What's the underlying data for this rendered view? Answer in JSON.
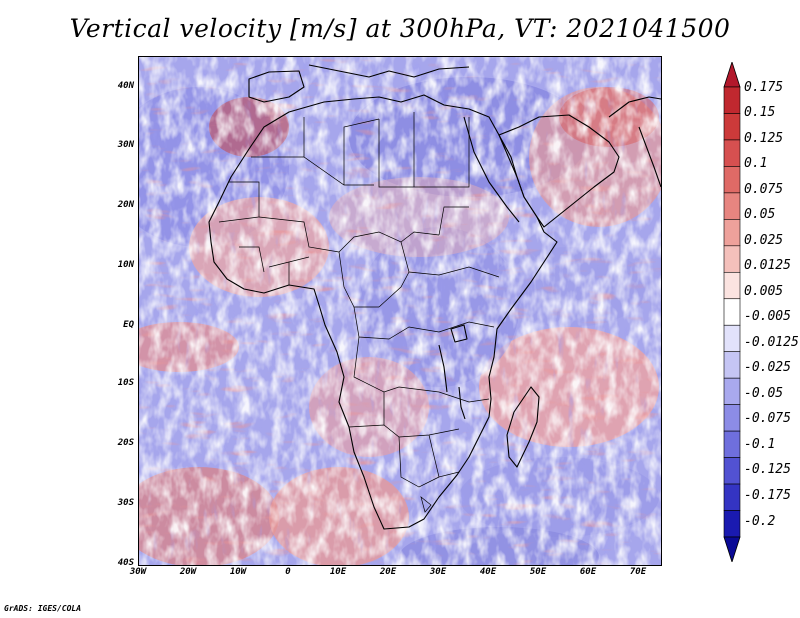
{
  "title": "Vertical velocity [m/s] at 300hPa, VT: 2021041500",
  "credit": "GrADS: IGES/COLA",
  "map": {
    "lat_labels": [
      "40N",
      "30N",
      "20N",
      "10N",
      "EQ",
      "10S",
      "20S",
      "30S",
      "40S"
    ],
    "lon_labels": [
      "30W",
      "20W",
      "10W",
      "0",
      "10E",
      "20E",
      "30E",
      "40E",
      "50E",
      "60E",
      "70E"
    ],
    "extent": {
      "lon_min": -30,
      "lon_max": 75,
      "lat_min": -40,
      "lat_max": 45
    }
  },
  "colorbar": {
    "labels": [
      "0.175",
      "0.15",
      "0.125",
      "0.1",
      "0.075",
      "0.05",
      "0.025",
      "0.0125",
      "0.005",
      "-0.005",
      "-0.0125",
      "-0.025",
      "-0.05",
      "-0.075",
      "-0.1",
      "-0.125",
      "-0.175",
      "-0.2"
    ],
    "colors": [
      "#b2182b",
      "#c0282f",
      "#cc3a3a",
      "#d65050",
      "#df6a66",
      "#e78580",
      "#eea19b",
      "#f4c0bb",
      "#fbe3e0",
      "#ffffff",
      "#e2e2fb",
      "#c5c5f4",
      "#a9a9ee",
      "#8c8ce6",
      "#6f6fdd",
      "#5252d2",
      "#3434c3",
      "#1a1ab0",
      "#0a0a96"
    ]
  }
}
